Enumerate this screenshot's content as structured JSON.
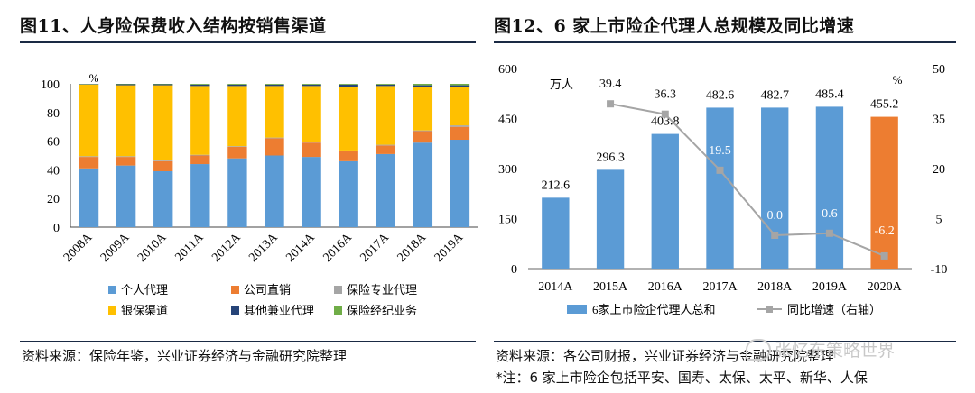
{
  "left": {
    "title": "图11、人身险保费收入结构按销售渠道",
    "source": "资料来源：保险年鉴，兴业证券经济与金融研究院整理"
  },
  "right": {
    "title": "图12、6 家上市险企代理人总规模及同比增速",
    "source": "资料来源：各公司财报，兴业证券经济与金融研究院整理",
    "note": "*注：6 家上市险企包括平安、国寿、太保、太平、新华、人保"
  },
  "watermark": "张忆东策略世界",
  "colors": {
    "blue": "#5b9bd5",
    "orange": "#ed7d31",
    "gray": "#a5a5a5",
    "yellow": "#ffc000",
    "navy": "#264478",
    "green": "#70ad47",
    "line": "#a5a5a5",
    "rule": "#1a2a44"
  },
  "chart_data": [
    {
      "type": "bar",
      "stacked": true,
      "categories": [
        "2008A",
        "2009A",
        "2010A",
        "2011A",
        "2012A",
        "2013A",
        "2014A",
        "2016A",
        "2017A",
        "2018A",
        "2019A"
      ],
      "y_unit": "%",
      "ylim": [
        0,
        100
      ],
      "yticks": [
        0,
        20,
        40,
        60,
        80,
        100
      ],
      "series": [
        {
          "name": "个人代理",
          "color": "#5b9bd5",
          "values": [
            41,
            43,
            39,
            44,
            48,
            50,
            49,
            46,
            51,
            59,
            61
          ]
        },
        {
          "name": "公司直销",
          "color": "#ed7d31",
          "values": [
            8,
            6,
            7,
            6,
            8,
            12,
            10,
            7,
            6,
            8,
            9
          ]
        },
        {
          "name": "保险专业代理",
          "color": "#a5a5a5",
          "values": [
            0.5,
            0.5,
            0.5,
            0.5,
            0.5,
            0.5,
            0.5,
            0.5,
            0.5,
            0.5,
            1
          ]
        },
        {
          "name": "银保渠道",
          "color": "#ffc000",
          "values": [
            50,
            49.5,
            52.5,
            48,
            42,
            36,
            39,
            44.5,
            41,
            30,
            27
          ]
        },
        {
          "name": "其他兼业代理",
          "color": "#264478",
          "values": [
            0.3,
            0.7,
            0.7,
            1,
            1,
            1,
            1,
            1.5,
            1,
            1.5,
            1
          ]
        },
        {
          "name": "保险经纪业务",
          "color": "#70ad47",
          "values": [
            0.2,
            0.3,
            0.3,
            0.5,
            0.5,
            0.5,
            0.5,
            0.5,
            0.5,
            1,
            1
          ]
        }
      ],
      "legend_position": "bottom"
    },
    {
      "type": "bar+line",
      "categories": [
        "2014A",
        "2015A",
        "2016A",
        "2017A",
        "2018A",
        "2019A",
        "2020A"
      ],
      "bars": {
        "name": "6家上市险企代理人总和",
        "unit": "万人",
        "values": [
          212.6,
          296.3,
          403.8,
          482.6,
          482.7,
          485.4,
          455.2
        ],
        "labels": [
          "212.6",
          "296.3",
          "403.8",
          "482.6",
          "482.7",
          "485.4",
          "455.2"
        ],
        "colors": [
          "#5b9bd5",
          "#5b9bd5",
          "#5b9bd5",
          "#5b9bd5",
          "#5b9bd5",
          "#5b9bd5",
          "#ed7d31"
        ]
      },
      "line": {
        "name": "同比增速（右轴）",
        "unit": "%",
        "x": [
          "2015A",
          "2016A",
          "2017A",
          "2018A",
          "2019A",
          "2020A"
        ],
        "values": [
          39.4,
          36.3,
          19.5,
          0.0,
          0.6,
          -6.2
        ],
        "labels": [
          "39.4",
          "36.3",
          "19.5",
          "0.0",
          "0.6",
          "-6.2"
        ]
      },
      "y_left": {
        "ylim": [
          0,
          600
        ],
        "ticks": [
          0,
          150,
          300,
          450,
          600
        ]
      },
      "y_right": {
        "ylim": [
          -10,
          50
        ],
        "ticks": [
          -10,
          5,
          20,
          35,
          50
        ]
      },
      "legend_position": "bottom"
    }
  ]
}
